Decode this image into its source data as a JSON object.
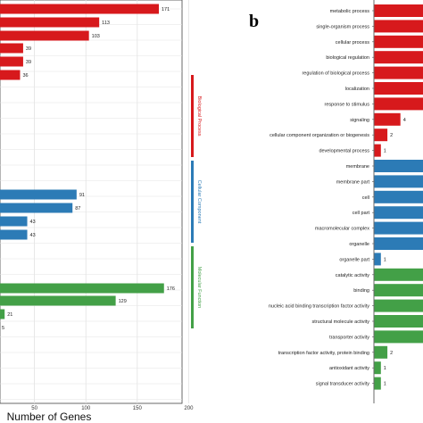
{
  "colors": {
    "biological": "#d7191c",
    "cellular": "#2c7bb6",
    "molecular": "#43a047",
    "grid": "#e3e3e3",
    "panel_border": "#444444"
  },
  "chart_data": [
    {
      "type": "bar",
      "orientation": "horizontal",
      "xlabel": "Number of Genes",
      "xticks": [
        "50",
        "100",
        "150",
        "200"
      ],
      "xlim": [
        -10,
        215
      ],
      "groups": [
        {
          "name": "Biological Process",
          "color": "#d7191c",
          "values": [
            171,
            113,
            103,
            39,
            39,
            36
          ]
        },
        {
          "name": "Cellular Component",
          "color": "#2c7bb6",
          "values": [
            91,
            87,
            43,
            43
          ]
        },
        {
          "name": "Molecular Function",
          "color": "#43a047",
          "values": [
            176,
            129,
            21,
            5
          ]
        }
      ],
      "value_labels": [
        "171",
        "113",
        "103",
        "39",
        "39",
        "36",
        "91",
        "87",
        "43",
        "43",
        "176",
        "129",
        "21",
        "5"
      ]
    },
    {
      "type": "bar",
      "orientation": "horizontal",
      "panel_label": "b",
      "categories": [
        "metabolic process",
        "single-organism process",
        "cellular process",
        "biological regulation",
        "regulation of biological process",
        "localization",
        "response to stimulus",
        "signaling",
        "cellular component organization or biogenesis",
        "developmental process",
        "membrane",
        "membrane part",
        "cell",
        "cell part",
        "macromolecular complex",
        "organelle",
        "organelle part",
        "catalytic activity",
        "binding",
        "nucleic acid binding transcription factor activity",
        "structural molecule activity",
        "transporter activity",
        "transcription factor activity, protein binding",
        "antioxidant activity",
        "signal transducer activity"
      ],
      "values": [
        10,
        10,
        10,
        10,
        10,
        10,
        10,
        4,
        2,
        1,
        10,
        10,
        10,
        10,
        10,
        10,
        1,
        10,
        10,
        10,
        10,
        10,
        2,
        1,
        1
      ],
      "value_labels": [
        "",
        "",
        "",
        "",
        "",
        "",
        "",
        "4",
        "2",
        "1",
        "",
        "",
        "",
        "",
        "",
        "",
        "1",
        "",
        "",
        "",
        "",
        "",
        "2",
        "1",
        "1"
      ],
      "groups": [
        {
          "name": "Biological Process",
          "color": "#d7191c",
          "count": 10
        },
        {
          "name": "Cellular Component",
          "color": "#2c7bb6",
          "count": 7
        },
        {
          "name": "Molecular Function",
          "color": "#43a047",
          "count": 8
        }
      ]
    }
  ]
}
